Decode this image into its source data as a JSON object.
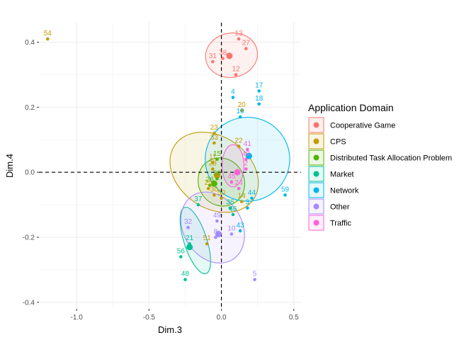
{
  "chart_data": {
    "type": "scatter",
    "xlabel": "Dim.3",
    "ylabel": "Dim.4",
    "xlim": [
      -1.26,
      0.55
    ],
    "ylim": [
      -0.42,
      0.46
    ],
    "xticks": [
      -1.0,
      -0.5,
      0.0,
      0.5
    ],
    "xtick_labels": [
      "-1.0",
      "-0.5",
      "0.0",
      "0.5"
    ],
    "yticks": [
      -0.4,
      -0.2,
      0.0,
      0.2,
      0.4
    ],
    "ytick_labels": [
      "-0.4",
      "-0.2",
      "0.0",
      "0.2",
      "0.4"
    ],
    "grid": true,
    "reference_lines": {
      "x": 0,
      "y": 0,
      "style": "dashed"
    },
    "legend": {
      "title": "Application Domain",
      "position": "right",
      "entries": [
        "Cooperative Game",
        "CPS",
        "Distributed Task Allocation Problem",
        "Market",
        "Network",
        "Other",
        "Traffic"
      ]
    },
    "series": [
      {
        "name": "Cooperative Game",
        "color": "#F8766D",
        "centroid": {
          "x": 0.055,
          "y": 0.358
        },
        "ellipse": {
          "cx": 0.07,
          "cy": 0.36,
          "rx": 0.18,
          "ry": 0.068,
          "angle_deg": 10
        },
        "points": [
          {
            "label": "13",
            "x": 0.12,
            "y": 0.41
          },
          {
            "label": "27",
            "x": 0.17,
            "y": 0.38
          },
          {
            "label": "31",
            "x": -0.06,
            "y": 0.34
          },
          {
            "label": "38",
            "x": 0.01,
            "y": 0.35
          },
          {
            "label": "12",
            "x": 0.1,
            "y": 0.3
          }
        ]
      },
      {
        "name": "CPS",
        "color": "#C49A00",
        "centroid": {
          "x": -0.03,
          "y": -0.01
        },
        "ellipse": {
          "cx": -0.05,
          "cy": 0.0,
          "rx": 0.33,
          "ry": 0.11,
          "angle_deg": -35
        },
        "points": [
          {
            "label": "54",
            "x": -1.2,
            "y": 0.41
          },
          {
            "label": "20",
            "x": 0.14,
            "y": 0.19
          },
          {
            "label": "23",
            "x": -0.05,
            "y": 0.12
          },
          {
            "label": "33",
            "x": -0.05,
            "y": 0.09
          },
          {
            "label": "22",
            "x": 0.12,
            "y": 0.08
          },
          {
            "label": "11",
            "x": -0.06,
            "y": 0.03
          },
          {
            "label": "28",
            "x": -0.06,
            "y": 0.01
          },
          {
            "label": "25",
            "x": -0.09,
            "y": -0.05
          },
          {
            "label": "30",
            "x": -0.05,
            "y": -0.07
          },
          {
            "label": "50",
            "x": 0.0,
            "y": -0.08
          },
          {
            "label": "14",
            "x": 0.14,
            "y": -0.09
          },
          {
            "label": "51",
            "x": -0.1,
            "y": -0.22
          }
        ]
      },
      {
        "name": "Distributed Task Allocation Problem",
        "color": "#53B400",
        "centroid": {
          "x": -0.05,
          "y": -0.035
        },
        "ellipse": {
          "cx": 0.0,
          "cy": -0.03,
          "rx": 0.17,
          "ry": 0.07,
          "angle_deg": -58
        },
        "points": [
          {
            "label": "15",
            "x": -0.03,
            "y": 0.04
          },
          {
            "label": "26",
            "x": -0.08,
            "y": -0.04
          },
          {
            "label": "39",
            "x": -0.03,
            "y": -0.02
          }
        ]
      },
      {
        "name": "Market",
        "color": "#00C094",
        "centroid": {
          "x": -0.22,
          "y": -0.23
        },
        "ellipse": {
          "cx": -0.18,
          "cy": -0.21,
          "rx": 0.24,
          "ry": 0.035,
          "angle_deg": -72
        },
        "points": [
          {
            "label": "21",
            "x": -0.22,
            "y": -0.22
          },
          {
            "label": "56",
            "x": -0.28,
            "y": -0.26
          },
          {
            "label": "48",
            "x": -0.25,
            "y": -0.33
          },
          {
            "label": "37",
            "x": -0.16,
            "y": -0.1
          },
          {
            "label": "36",
            "x": 0.06,
            "y": -0.11
          },
          {
            "label": "46",
            "x": 0.08,
            "y": -0.13
          }
        ]
      },
      {
        "name": "Network",
        "color": "#00B6EB",
        "centroid": {
          "x": 0.19,
          "y": 0.05
        },
        "ellipse": {
          "cx": 0.18,
          "cy": 0.04,
          "rx": 0.29,
          "ry": 0.13,
          "angle_deg": -84
        },
        "points": [
          {
            "label": "17",
            "x": 0.26,
            "y": 0.25
          },
          {
            "label": "4",
            "x": 0.08,
            "y": 0.23
          },
          {
            "label": "18",
            "x": 0.26,
            "y": 0.21
          },
          {
            "label": "19",
            "x": 0.13,
            "y": 0.17
          },
          {
            "label": "59",
            "x": 0.44,
            "y": -0.07
          },
          {
            "label": "44",
            "x": 0.21,
            "y": -0.08
          },
          {
            "label": "3",
            "x": 0.18,
            "y": -0.11
          },
          {
            "label": "43",
            "x": 0.13,
            "y": -0.18
          }
        ]
      },
      {
        "name": "Other",
        "color": "#A58AFF",
        "centroid": {
          "x": -0.02,
          "y": -0.19
        },
        "ellipse": {
          "cx": -0.06,
          "cy": -0.17,
          "rx": 0.26,
          "ry": 0.09,
          "angle_deg": -58
        },
        "points": [
          {
            "label": "32",
            "x": -0.23,
            "y": -0.17
          },
          {
            "label": "49",
            "x": -0.03,
            "y": -0.15
          },
          {
            "label": "8",
            "x": -0.04,
            "y": -0.2
          },
          {
            "label": "10",
            "x": 0.07,
            "y": -0.19
          },
          {
            "label": "5",
            "x": 0.23,
            "y": -0.33
          }
        ]
      },
      {
        "name": "Traffic",
        "color": "#FB61D7",
        "centroid": {
          "x": 0.11,
          "y": 0.0
        },
        "ellipse": {
          "cx": 0.08,
          "cy": 0.02,
          "rx": 0.075,
          "ry": 0.065,
          "angle_deg": 0
        },
        "points": [
          {
            "label": "41",
            "x": 0.18,
            "y": 0.07
          },
          {
            "label": "40",
            "x": 0.17,
            "y": 0.04
          },
          {
            "label": "2",
            "x": 0.17,
            "y": 0.01
          },
          {
            "label": "45",
            "x": 0.07,
            "y": -0.03
          },
          {
            "label": "24",
            "x": 0.12,
            "y": -0.05
          }
        ]
      }
    ]
  }
}
